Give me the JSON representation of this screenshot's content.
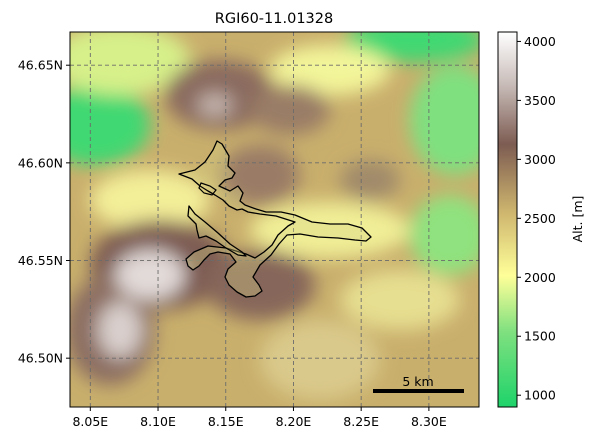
{
  "chart_data": {
    "type": "map",
    "title": "RGI60-11.01328",
    "x_ticks": [
      "8.05E",
      "8.10E",
      "8.15E",
      "8.20E",
      "8.25E",
      "8.30E"
    ],
    "y_ticks": [
      "46.65N",
      "46.60N",
      "46.55N",
      "46.50N"
    ],
    "x_tick_values": [
      8.05,
      8.1,
      8.15,
      8.2,
      8.25,
      8.3
    ],
    "y_tick_values": [
      46.65,
      46.6,
      46.55,
      46.5
    ],
    "xlim": [
      8.035,
      8.337
    ],
    "ylim": [
      46.475,
      46.667
    ],
    "grid": true,
    "colorbar": {
      "label": "Alt. [m]",
      "ticks": [
        "1000",
        "1500",
        "2000",
        "2500",
        "3000",
        "3500",
        "4000"
      ],
      "tick_values": [
        1000,
        1500,
        2000,
        2500,
        3000,
        3500,
        4000
      ],
      "range": [
        900,
        4080
      ],
      "colors": [
        "#1ed36a",
        "#7fe07f",
        "#ffff99",
        "#ceb56e",
        "#7d5c52",
        "#c8bcb8",
        "#ffffff"
      ]
    },
    "scale_bar": {
      "label": "5 km",
      "length_km": 5
    },
    "glacier_outline_color": "#000000"
  }
}
